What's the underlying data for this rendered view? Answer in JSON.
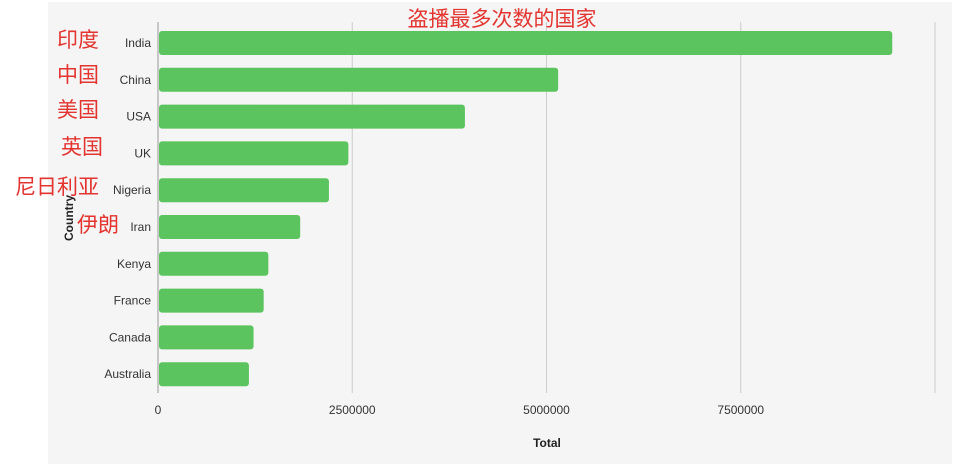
{
  "annotations": {
    "title": "盗播最多次数的国家",
    "labels": [
      "印度",
      "中国",
      "美国",
      "英国",
      "尼日利亚",
      "伊朗"
    ]
  },
  "chart_data": {
    "type": "bar",
    "orientation": "horizontal",
    "categories": [
      "India",
      "China",
      "USA",
      "UK",
      "Nigeria",
      "Iran",
      "Kenya",
      "France",
      "Canada",
      "Australia"
    ],
    "values": [
      9450000,
      5150000,
      3950000,
      2450000,
      2200000,
      1830000,
      1420000,
      1360000,
      1230000,
      1170000
    ],
    "xlabel": "Total",
    "ylabel": "Country",
    "xlim": [
      0,
      10000000
    ],
    "xticks": [
      0,
      2500000,
      5000000,
      7500000
    ],
    "xtick_labels": [
      "0",
      "2500000",
      "5000000",
      "7500000"
    ],
    "grid": true,
    "bar_color": "#5cc45f",
    "grid_color": "#cccccc"
  }
}
